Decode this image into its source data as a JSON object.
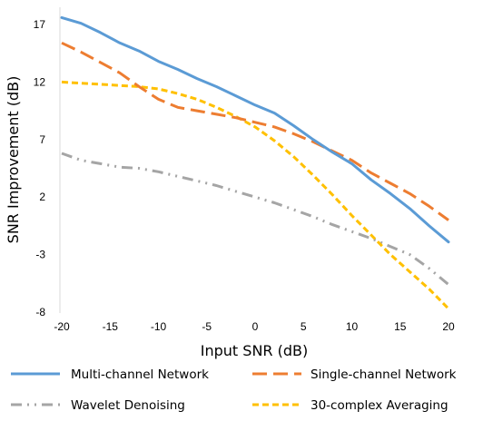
{
  "chart_data": {
    "type": "line",
    "title": "",
    "xlabel": "Input SNR (dB)",
    "ylabel": "SNR Improvement (dB)",
    "xlim": [
      -20,
      20
    ],
    "ylim": [
      -8,
      17
    ],
    "xticks": [
      -20,
      -15,
      -10,
      -5,
      0,
      5,
      10,
      15,
      20
    ],
    "yticks": [
      17,
      12,
      7,
      2,
      -3,
      -8
    ],
    "grid": false,
    "legend_position": "bottom",
    "series": [
      {
        "name": "Multi-channel Network",
        "color": "#5b9bd5",
        "dash": "solid",
        "x": [
          -20,
          -18,
          -16,
          -14,
          -12,
          -10,
          -8,
          -6,
          -4,
          -2,
          0,
          2,
          4,
          6,
          8,
          10,
          12,
          14,
          16,
          18,
          20
        ],
        "y": [
          17.6,
          17.1,
          16.3,
          15.4,
          14.7,
          13.8,
          13.1,
          12.3,
          11.6,
          10.8,
          10.0,
          9.3,
          8.2,
          7.0,
          5.9,
          4.9,
          3.5,
          2.3,
          1.0,
          -0.5,
          -1.9
        ]
      },
      {
        "name": "Single-channel Network",
        "color": "#ed7d31",
        "dash": "long-dash",
        "x": [
          -20,
          -18,
          -16,
          -14,
          -12,
          -10,
          -8,
          -6,
          -4,
          -2,
          0,
          2,
          4,
          6,
          8,
          10,
          12,
          14,
          16,
          18,
          20
        ],
        "y": [
          15.4,
          14.6,
          13.7,
          12.8,
          11.6,
          10.5,
          9.8,
          9.5,
          9.2,
          8.9,
          8.5,
          8.1,
          7.5,
          6.8,
          6.0,
          5.2,
          4.1,
          3.2,
          2.3,
          1.2,
          0.0
        ]
      },
      {
        "name": "Wavelet Denoising",
        "color": "#a5a5a5",
        "dash": "dash-dot-dot",
        "x": [
          -20,
          -18,
          -16,
          -14,
          -12,
          -10,
          -8,
          -6,
          -4,
          -2,
          0,
          2,
          4,
          6,
          8,
          10,
          12,
          14,
          16,
          18,
          20
        ],
        "y": [
          5.8,
          5.2,
          4.9,
          4.6,
          4.5,
          4.2,
          3.8,
          3.4,
          3.0,
          2.5,
          2.0,
          1.5,
          0.9,
          0.3,
          -0.4,
          -1.0,
          -1.6,
          -2.3,
          -3.0,
          -4.2,
          -5.6
        ]
      },
      {
        "name": "30-complex Averaging",
        "color": "#ffc000",
        "dash": "short-dash",
        "x": [
          -20,
          -18,
          -16,
          -14,
          -12,
          -10,
          -8,
          -6,
          -4,
          -2,
          0,
          2,
          4,
          6,
          8,
          10,
          12,
          14,
          16,
          18,
          20
        ],
        "y": [
          12.0,
          11.9,
          11.8,
          11.7,
          11.6,
          11.4,
          11.0,
          10.5,
          9.8,
          9.0,
          8.1,
          6.9,
          5.5,
          3.9,
          2.2,
          0.4,
          -1.3,
          -3.0,
          -4.5,
          -6.0,
          -7.7
        ]
      }
    ]
  }
}
